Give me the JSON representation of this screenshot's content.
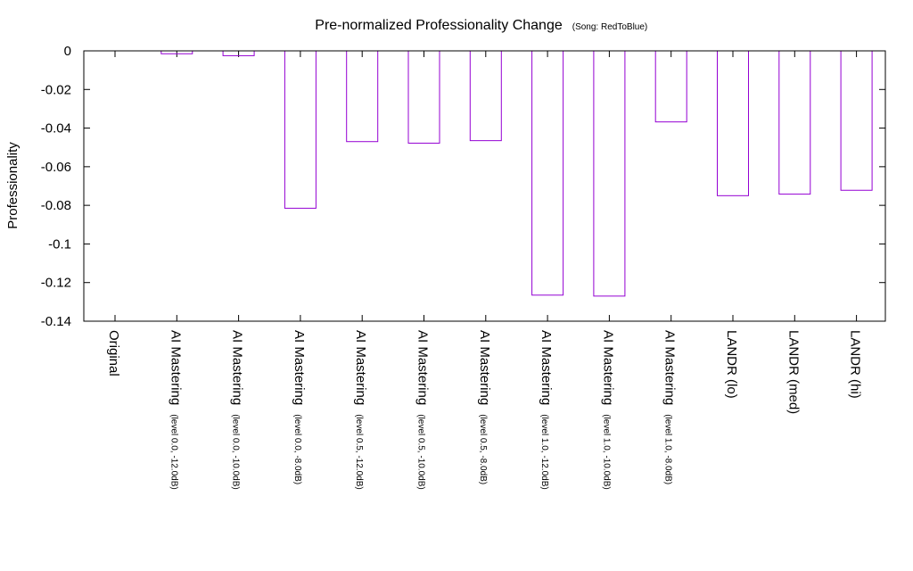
{
  "chart_data": {
    "type": "bar",
    "title": "Pre-normalized Professionality Change",
    "subtitle": "(Song: RedToBlue)",
    "xlabel": "",
    "ylabel": "Professionality",
    "ylim": [
      -0.14,
      0
    ],
    "yticks": [
      0,
      -0.02,
      -0.04,
      -0.06,
      -0.08,
      -0.1,
      -0.12,
      -0.14
    ],
    "ytick_labels": [
      "0",
      "-0.02",
      "-0.04",
      "-0.06",
      "-0.08",
      "-0.1",
      "-0.12",
      "-0.14"
    ],
    "grid": false,
    "bar_color": "#9400d3",
    "categories": [
      {
        "main": "Original",
        "sub": ""
      },
      {
        "main": "AI Mastering",
        "sub": "(level 0.0, -12.0dB)"
      },
      {
        "main": "AI Mastering",
        "sub": "(level 0.0, -10.0dB)"
      },
      {
        "main": "AI Mastering",
        "sub": "(level 0.0, -8.0dB)"
      },
      {
        "main": "AI Mastering",
        "sub": "(level 0.5, -12.0dB)"
      },
      {
        "main": "AI Mastering",
        "sub": "(level 0.5, -10.0dB)"
      },
      {
        "main": "AI Mastering",
        "sub": "(level 0.5, -8.0dB)"
      },
      {
        "main": "AI Mastering",
        "sub": "(level 1.0, -12.0dB)"
      },
      {
        "main": "AI Mastering",
        "sub": "(level 1.0, -10.0dB)"
      },
      {
        "main": "AI Mastering",
        "sub": "(level 1.0, -8.0dB)"
      },
      {
        "main": "LANDR (lo)",
        "sub": ""
      },
      {
        "main": "LANDR (med)",
        "sub": ""
      },
      {
        "main": "LANDR (hi)",
        "sub": ""
      }
    ],
    "values": [
      0,
      -0.0015,
      -0.0025,
      -0.0815,
      -0.047,
      -0.0478,
      -0.0465,
      -0.1265,
      -0.127,
      -0.0368,
      -0.075,
      -0.0742,
      -0.0722
    ]
  }
}
